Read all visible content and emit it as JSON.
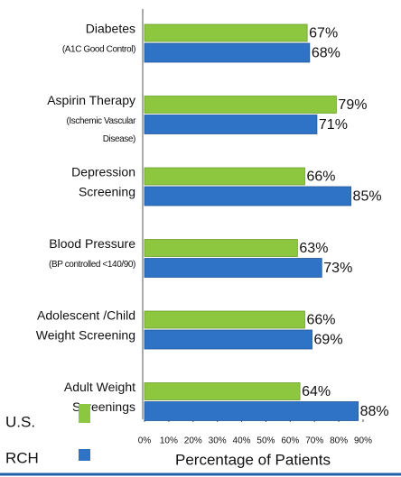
{
  "chart_data": {
    "type": "hbar",
    "categories": [
      {
        "label": [
          "Diabetes"
        ],
        "note": [
          "(A1C Good Control)"
        ]
      },
      {
        "label": [
          "Aspirin Therapy"
        ],
        "note": [
          "(Ischemic Vascular",
          "Disease)"
        ]
      },
      {
        "label": [
          "Depression",
          "Screening"
        ],
        "note": []
      },
      {
        "label": [
          "Blood Pressure"
        ],
        "note": [
          "(BP controlled <140/90)"
        ]
      },
      {
        "label": [
          "Adolescent /Child",
          "Weight Screening"
        ],
        "note": []
      },
      {
        "label": [
          "Adult Weight",
          "Screenings"
        ],
        "note": []
      }
    ],
    "series": [
      {
        "name": "U.S.",
        "color": "#8dc63f",
        "values": [
          67,
          79,
          66,
          63,
          66,
          64
        ],
        "value_labels": [
          "67%",
          "79%",
          "66%",
          "63%",
          "66%",
          "64%"
        ]
      },
      {
        "name": "RCH",
        "color": "#2f73c6",
        "values": [
          68,
          71,
          85,
          73,
          69,
          88
        ],
        "value_labels": [
          "68%",
          "71%",
          "85%",
          "73%",
          "69%",
          "88%"
        ]
      }
    ],
    "xlim": [
      0,
      90
    ],
    "xticks": [
      {
        "value": 0,
        "label": "0%"
      },
      {
        "value": 10,
        "label": "10%"
      },
      {
        "value": 20,
        "label": "20%"
      },
      {
        "value": 30,
        "label": "30%"
      },
      {
        "value": 40,
        "label": "40%"
      },
      {
        "value": 50,
        "label": "50%"
      },
      {
        "value": 60,
        "label": "60%"
      },
      {
        "value": 70,
        "label": "70%"
      },
      {
        "value": 80,
        "label": "80%"
      },
      {
        "value": 90,
        "label": "90%"
      }
    ],
    "xlabel": "Percentage of Patients",
    "legend": "bottom-left"
  }
}
